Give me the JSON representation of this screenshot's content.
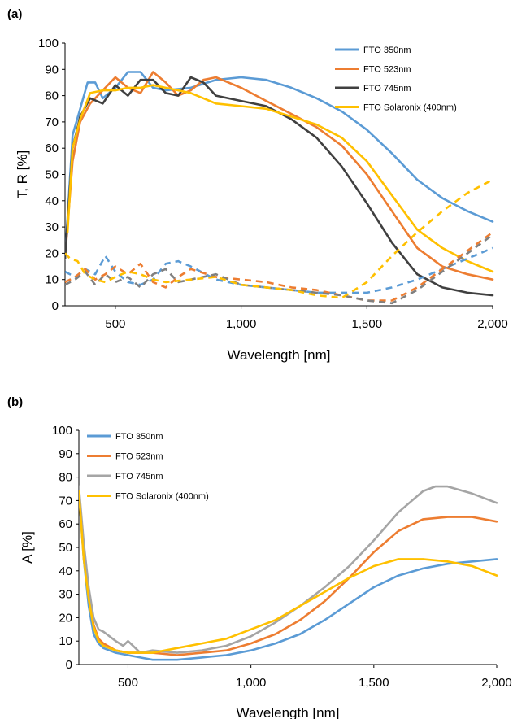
{
  "chart_data": [
    {
      "panel_label": "(a)",
      "type": "line",
      "xlabel": "Wavelength [nm]",
      "ylabel": "T, R [%]",
      "xlim": [
        300,
        2000
      ],
      "ylim": [
        0,
        100
      ],
      "x_ticks": [
        500,
        1000,
        1500,
        2000
      ],
      "x_tick_labels": [
        "500",
        "1,000",
        "1,500",
        "2,000"
      ],
      "y_ticks": [
        0,
        10,
        20,
        30,
        40,
        50,
        60,
        70,
        80,
        90,
        100
      ],
      "y_tick_labels": [
        "0",
        "10",
        "20",
        "30",
        "40",
        "50",
        "60",
        "70",
        "80",
        "90",
        "100"
      ],
      "grid": false,
      "legend_position": "top-right",
      "series": [
        {
          "name": "FTO 350nm",
          "color": "#5b9bd5",
          "style": "solid",
          "x": [
            300,
            330,
            360,
            390,
            420,
            450,
            500,
            550,
            600,
            650,
            700,
            800,
            900,
            1000,
            1100,
            1200,
            1300,
            1400,
            1500,
            1600,
            1700,
            1800,
            1900,
            2000
          ],
          "y": [
            18,
            65,
            75,
            85,
            85,
            79,
            83,
            89,
            89,
            83,
            82,
            83,
            86,
            87,
            86,
            83,
            79,
            74,
            67,
            58,
            48,
            41,
            36,
            32
          ]
        },
        {
          "name": "FTO 523nm",
          "color": "#ed7d31",
          "style": "solid",
          "x": [
            300,
            330,
            360,
            400,
            450,
            500,
            550,
            600,
            650,
            700,
            750,
            800,
            850,
            900,
            1000,
            1100,
            1200,
            1300,
            1400,
            1500,
            1600,
            1700,
            1800,
            1900,
            2000
          ],
          "y": [
            18,
            55,
            70,
            77,
            82,
            87,
            83,
            81,
            89,
            85,
            80,
            82,
            86,
            87,
            83,
            78,
            73,
            68,
            61,
            50,
            36,
            22,
            15,
            12,
            10
          ]
        },
        {
          "name": "FTO 745nm",
          "color": "#404040",
          "style": "solid",
          "x": [
            300,
            330,
            360,
            400,
            450,
            500,
            550,
            600,
            650,
            700,
            750,
            800,
            850,
            900,
            1000,
            1100,
            1200,
            1300,
            1400,
            1500,
            1600,
            1700,
            1800,
            1900,
            2000
          ],
          "y": [
            18,
            60,
            72,
            79,
            77,
            84,
            80,
            86,
            86,
            81,
            80,
            87,
            85,
            80,
            78,
            76,
            71,
            64,
            53,
            39,
            24,
            12,
            7,
            5,
            4
          ]
        },
        {
          "name": "FTO Solaronix (400nm)",
          "color": "#ffc000",
          "style": "solid",
          "x": [
            310,
            330,
            360,
            400,
            450,
            500,
            550,
            600,
            650,
            700,
            800,
            900,
            1000,
            1100,
            1200,
            1300,
            1400,
            1500,
            1600,
            1700,
            1800,
            1900,
            2000
          ],
          "y": [
            28,
            60,
            71,
            81,
            82,
            82,
            83,
            83,
            84,
            83,
            81,
            77,
            76,
            75,
            72,
            69,
            64,
            55,
            42,
            29,
            22,
            17,
            13
          ]
        },
        {
          "name": "",
          "color": "#5b9bd5",
          "style": "dashed",
          "x": [
            300,
            340,
            380,
            420,
            460,
            500,
            550,
            600,
            650,
            700,
            750,
            800,
            900,
            1000,
            1100,
            1200,
            1300,
            1400,
            1500,
            1600,
            1700,
            1800,
            1900,
            2000
          ],
          "y": [
            13,
            11,
            14,
            12,
            19,
            13,
            9,
            8,
            10,
            16,
            17,
            15,
            10,
            8,
            7,
            6,
            5,
            5,
            5,
            7,
            10,
            14,
            18,
            22
          ]
        },
        {
          "name": "",
          "color": "#ed7d31",
          "style": "dashed",
          "x": [
            300,
            340,
            380,
            420,
            460,
            500,
            550,
            600,
            650,
            700,
            750,
            800,
            900,
            1000,
            1100,
            1200,
            1300,
            1400,
            1500,
            1600,
            1700,
            1800,
            1900,
            2000
          ],
          "y": [
            9,
            11,
            14,
            10,
            12,
            15,
            12,
            16,
            9,
            7,
            11,
            14,
            11,
            10,
            9,
            7,
            6,
            4,
            2,
            2,
            7,
            14,
            21,
            28
          ]
        },
        {
          "name": "",
          "color": "#808080",
          "style": "dashed",
          "x": [
            300,
            340,
            380,
            420,
            460,
            500,
            550,
            600,
            650,
            700,
            750,
            800,
            900,
            1000,
            1100,
            1200,
            1300,
            1400,
            1500,
            1600,
            1700,
            1800,
            1900,
            2000
          ],
          "y": [
            8,
            10,
            13,
            8,
            12,
            9,
            11,
            7,
            12,
            14,
            9,
            10,
            12,
            8,
            7,
            6,
            5,
            4,
            2,
            1,
            6,
            13,
            20,
            27
          ]
        },
        {
          "name": "",
          "color": "#ffc000",
          "style": "dashed",
          "x": [
            300,
            320,
            350,
            380,
            420,
            460,
            500,
            550,
            600,
            650,
            700,
            800,
            900,
            1000,
            1100,
            1200,
            1300,
            1400,
            1500,
            1600,
            1700,
            1800,
            1900,
            2000
          ],
          "y": [
            20,
            18,
            17,
            12,
            10,
            9,
            11,
            13,
            12,
            10,
            9,
            10,
            11,
            8,
            7,
            6,
            4,
            3,
            9,
            19,
            28,
            36,
            43,
            48
          ]
        }
      ]
    },
    {
      "panel_label": "(b)",
      "type": "line",
      "xlabel": "Wavelength [nm]",
      "ylabel": "A [%]",
      "xlim": [
        300,
        2000
      ],
      "ylim": [
        0,
        100
      ],
      "x_ticks": [
        500,
        1000,
        1500,
        2000
      ],
      "x_tick_labels": [
        "500",
        "1,000",
        "1,500",
        "2,000"
      ],
      "y_ticks": [
        0,
        10,
        20,
        30,
        40,
        50,
        60,
        70,
        80,
        90,
        100
      ],
      "y_tick_labels": [
        "0",
        "10",
        "20",
        "30",
        "40",
        "50",
        "60",
        "70",
        "80",
        "90",
        "100"
      ],
      "grid": false,
      "legend_position": "top-left",
      "series": [
        {
          "name": "FTO 350nm",
          "color": "#5b9bd5",
          "style": "solid",
          "x": [
            300,
            320,
            340,
            360,
            380,
            400,
            450,
            500,
            550,
            600,
            700,
            800,
            900,
            1000,
            1100,
            1200,
            1300,
            1400,
            1500,
            1600,
            1700,
            1800,
            1900,
            2000
          ],
          "y": [
            74,
            45,
            25,
            13,
            9,
            7,
            5,
            4,
            3,
            2,
            2,
            3,
            4,
            6,
            9,
            13,
            19,
            26,
            33,
            38,
            41,
            43,
            44,
            45
          ]
        },
        {
          "name": "FTO 523nm",
          "color": "#ed7d31",
          "style": "solid",
          "x": [
            300,
            320,
            340,
            360,
            380,
            400,
            450,
            500,
            550,
            600,
            700,
            800,
            900,
            1000,
            1100,
            1200,
            1300,
            1400,
            1500,
            1600,
            1700,
            1800,
            1900,
            2000
          ],
          "y": [
            74,
            48,
            30,
            17,
            11,
            9,
            6,
            5,
            5,
            5,
            4,
            5,
            6,
            9,
            13,
            19,
            27,
            37,
            48,
            57,
            62,
            63,
            63,
            61
          ]
        },
        {
          "name": "FTO 745nm",
          "color": "#a5a5a5",
          "style": "solid",
          "x": [
            300,
            320,
            340,
            360,
            380,
            400,
            450,
            480,
            500,
            550,
            600,
            700,
            800,
            900,
            1000,
            1100,
            1200,
            1300,
            1400,
            1500,
            1600,
            1700,
            1750,
            1800,
            1900,
            2000
          ],
          "y": [
            76,
            52,
            33,
            20,
            15,
            14,
            10,
            8,
            10,
            5,
            6,
            5,
            6,
            8,
            12,
            18,
            25,
            33,
            42,
            53,
            65,
            74,
            76,
            76,
            73,
            69
          ]
        },
        {
          "name": "FTO Solaronix (400nm)",
          "color": "#ffc000",
          "style": "solid",
          "x": [
            300,
            320,
            340,
            360,
            380,
            400,
            450,
            500,
            550,
            600,
            700,
            800,
            900,
            1000,
            1100,
            1200,
            1300,
            1400,
            1500,
            1600,
            1650,
            1700,
            1800,
            1900,
            2000
          ],
          "y": [
            74,
            45,
            28,
            16,
            10,
            8,
            6,
            5,
            5,
            5,
            7,
            9,
            11,
            15,
            19,
            25,
            31,
            37,
            42,
            45,
            45,
            45,
            44,
            42,
            38
          ]
        }
      ]
    }
  ]
}
